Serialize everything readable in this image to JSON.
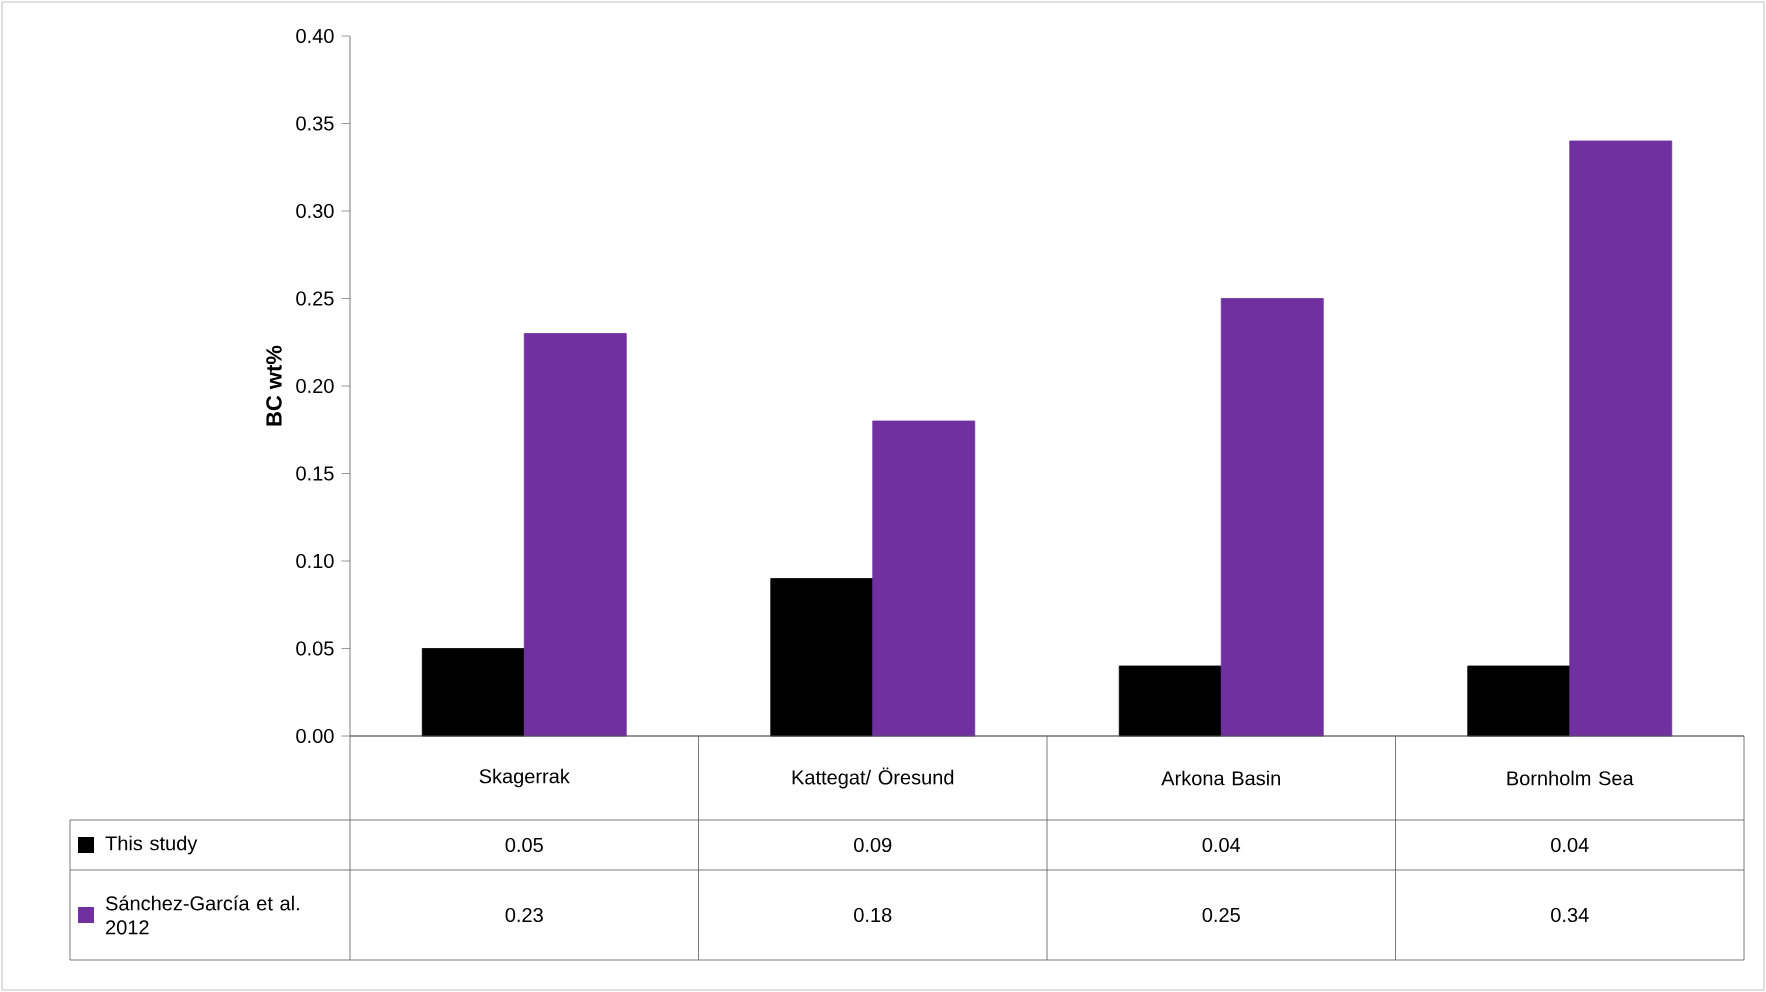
{
  "chart_data": {
    "type": "bar",
    "ylabel": "BC wt%",
    "categories": [
      "Skagerrak",
      "Kattegat/ Öresund",
      "Arkona Basin",
      "Bornholm Sea"
    ],
    "series": [
      {
        "name": "This study",
        "color": "#000000",
        "values": [
          0.05,
          0.09,
          0.04,
          0.04
        ]
      },
      {
        "name": "Sánchez-García et al. 2012",
        "color": "#7030a0",
        "values": [
          0.23,
          0.18,
          0.25,
          0.34
        ]
      }
    ],
    "ylim": [
      0,
      0.4
    ],
    "yticks": [
      {
        "value": 0,
        "label": "0.00"
      },
      {
        "value": 0.05,
        "label": "0.05"
      },
      {
        "value": 0.1,
        "label": "0.10"
      },
      {
        "value": 0.15,
        "label": "0.15"
      },
      {
        "value": 0.2,
        "label": "0.20"
      },
      {
        "value": 0.25,
        "label": "0.25"
      },
      {
        "value": 0.3,
        "label": "0.30"
      },
      {
        "value": 0.35,
        "label": "0.35"
      },
      {
        "value": 0.4,
        "label": "0.40"
      }
    ],
    "grid": false,
    "legend": "bottom",
    "data_labels": true
  }
}
